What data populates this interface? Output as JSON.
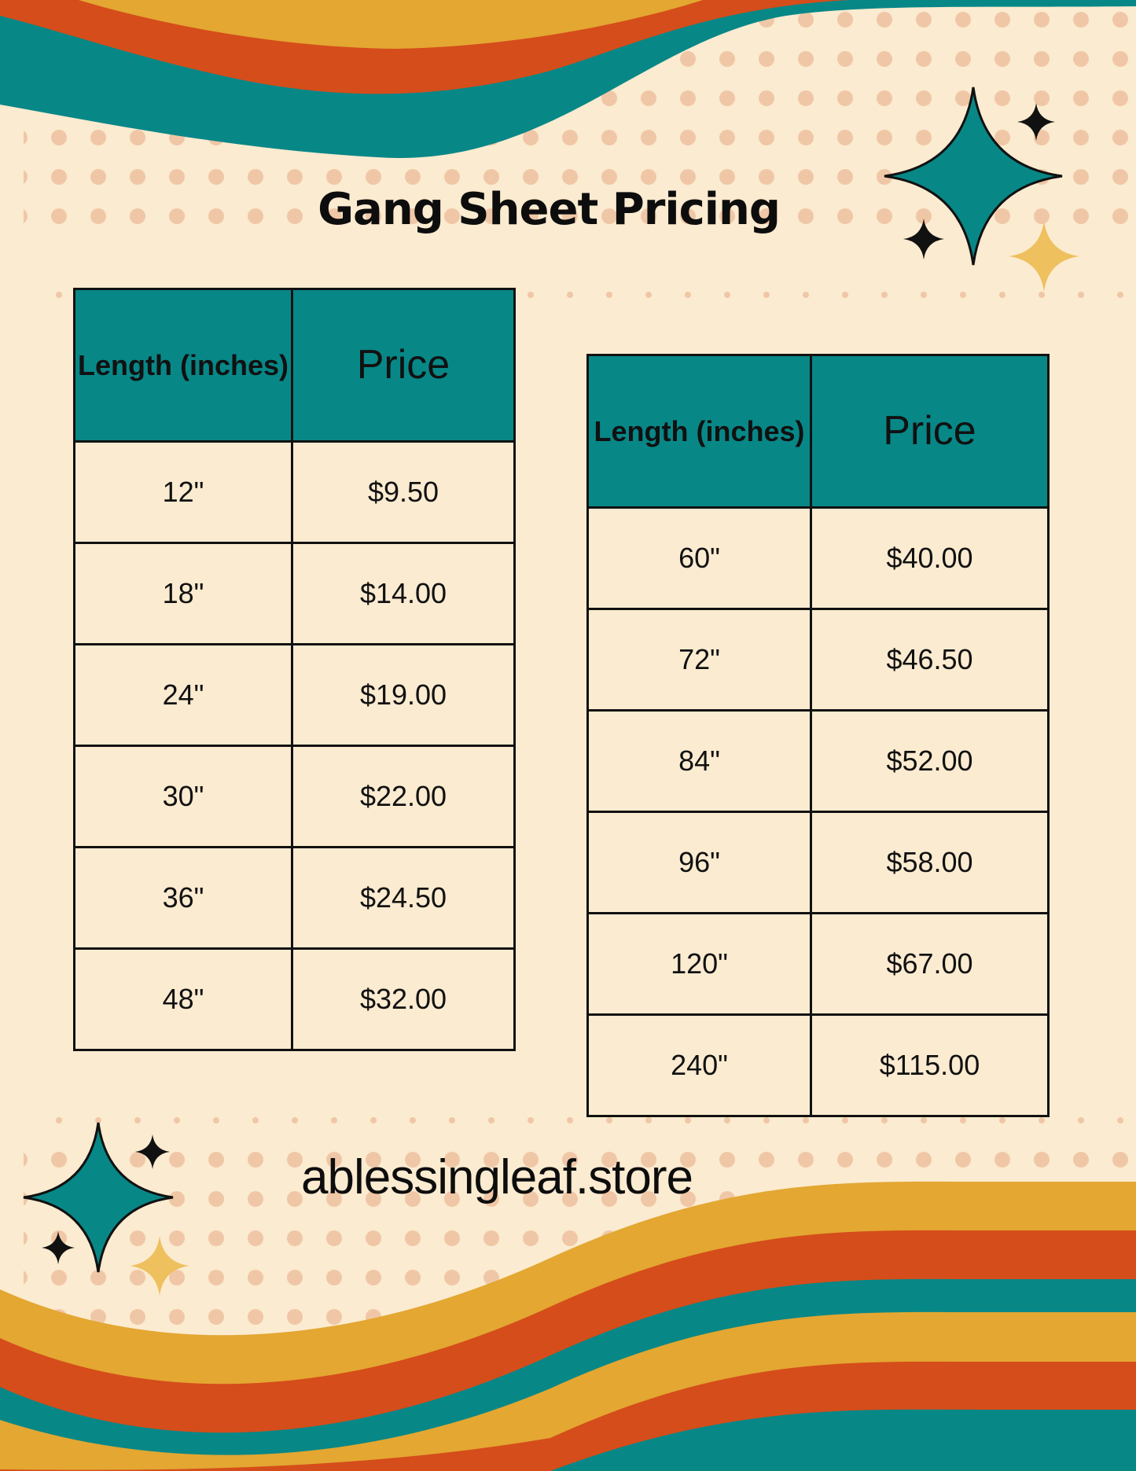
{
  "title": "Gang Sheet Pricing",
  "colors": {
    "background": "#FBEBD0",
    "teal": "#088787",
    "orange": "#D54D1A",
    "yellow": "#E3A732",
    "dots": "#F0C7A6",
    "sparkle_yellow": "#EEC05E"
  },
  "icons": [
    "sparkle-icon"
  ],
  "tables": [
    {
      "headers": {
        "length": "Length (inches)",
        "price": "Price"
      },
      "rows": [
        {
          "length": "12\"",
          "price": "$9.50"
        },
        {
          "length": "18\"",
          "price": "$14.00"
        },
        {
          "length": "24\"",
          "price": "$19.00"
        },
        {
          "length": "30\"",
          "price": "$22.00"
        },
        {
          "length": "36\"",
          "price": "$24.50"
        },
        {
          "length": "48\"",
          "price": "$32.00"
        }
      ]
    },
    {
      "headers": {
        "length": "Length (inches)",
        "price": "Price"
      },
      "rows": [
        {
          "length": "60\"",
          "price": "$40.00"
        },
        {
          "length": "72\"",
          "price": "$46.50"
        },
        {
          "length": "84\"",
          "price": "$52.00"
        },
        {
          "length": "96\"",
          "price": "$58.00"
        },
        {
          "length": "120\"",
          "price": "$67.00"
        },
        {
          "length": "240\"",
          "price": "$115.00"
        }
      ]
    }
  ],
  "website": "ablessingleaf.store"
}
